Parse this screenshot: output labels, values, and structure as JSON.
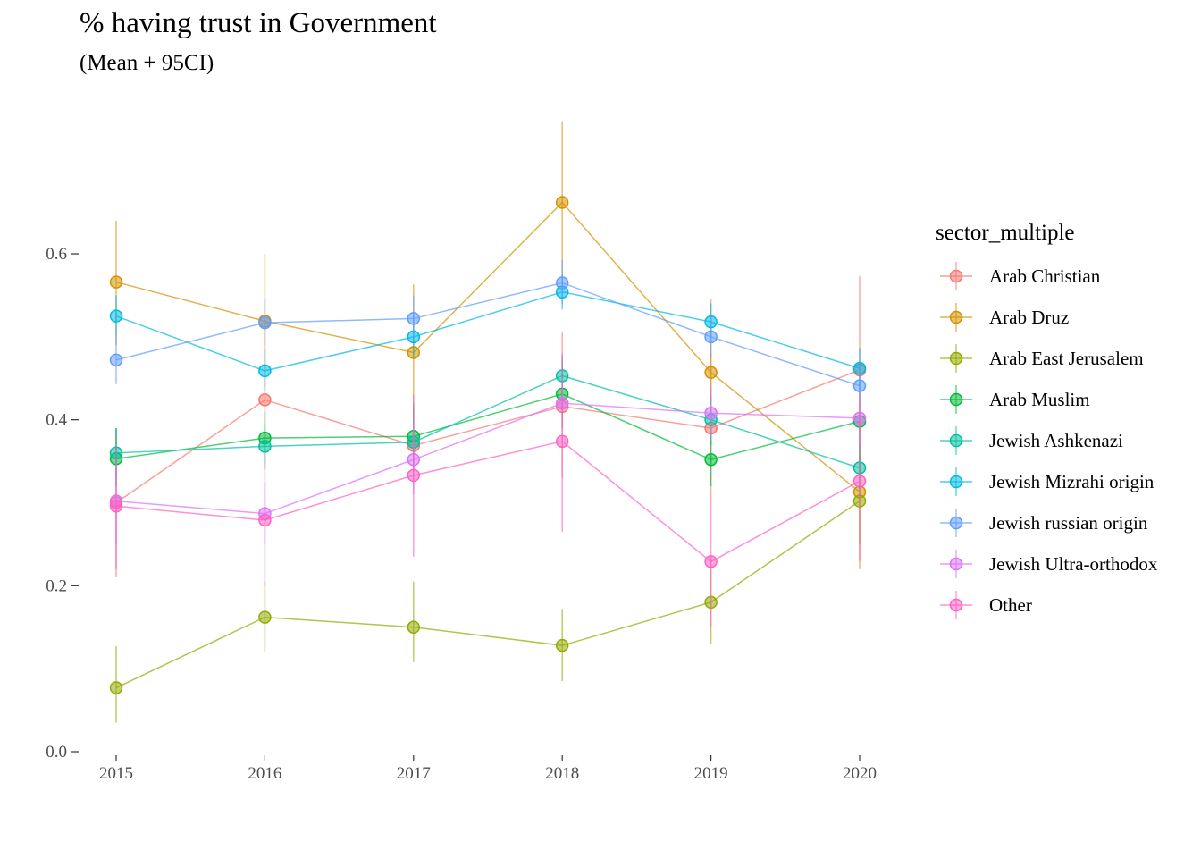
{
  "chart_data": {
    "type": "line",
    "title": "% having trust in Government",
    "subtitle": "(Mean + 95CI)",
    "xlabel": "",
    "ylabel": "",
    "x": [
      2015,
      2016,
      2017,
      2018,
      2019,
      2020
    ],
    "x_tick_labels": [
      "2015",
      "2016",
      "2017",
      "2018",
      "2019",
      "2020"
    ],
    "y_ticks": [
      0.0,
      0.2,
      0.4,
      0.6
    ],
    "y_tick_labels": [
      "0.0",
      "0.2",
      "0.4",
      "0.6"
    ],
    "ylim": [
      0.0,
      0.76
    ],
    "grid": false,
    "legend_title": "sector_multiple",
    "legend_position": "right",
    "series": [
      {
        "name": "Arab Christian",
        "color": "#F8766D",
        "values": [
          0.3,
          0.424,
          0.369,
          0.416,
          0.39,
          0.46
        ],
        "ci_low": [
          0.21,
          0.34,
          0.32,
          0.33,
          0.3,
          0.345
        ],
        "ci_high": [
          0.39,
          0.51,
          0.415,
          0.505,
          0.48,
          0.573
        ]
      },
      {
        "name": "Arab Druz",
        "color": "#D39200",
        "values": [
          0.566,
          0.519,
          0.481,
          0.662,
          0.457,
          0.313
        ],
        "ci_low": [
          0.49,
          0.44,
          0.4,
          0.565,
          0.37,
          0.22
        ],
        "ci_high": [
          0.64,
          0.6,
          0.563,
          0.76,
          0.545,
          0.4
        ]
      },
      {
        "name": "Arab East Jerusalem",
        "color": "#93AA00",
        "values": [
          0.077,
          0.162,
          0.15,
          0.128,
          0.18,
          0.302
        ],
        "ci_low": [
          0.035,
          0.12,
          0.108,
          0.085,
          0.13,
          0.25
        ],
        "ci_high": [
          0.127,
          0.205,
          0.205,
          0.172,
          0.23,
          0.355
        ]
      },
      {
        "name": "Arab Muslim",
        "color": "#00BA38",
        "values": [
          0.353,
          0.378,
          0.38,
          0.431,
          0.352,
          0.398
        ],
        "ci_low": [
          0.32,
          0.345,
          0.34,
          0.39,
          0.32,
          0.35
        ],
        "ci_high": [
          0.39,
          0.41,
          0.42,
          0.47,
          0.385,
          0.445
        ]
      },
      {
        "name": "Jewish Ashkenazi",
        "color": "#00C19F",
        "values": [
          0.36,
          0.368,
          0.373,
          0.453,
          0.4,
          0.342
        ],
        "ci_low": [
          0.33,
          0.34,
          0.345,
          0.43,
          0.37,
          0.315
        ],
        "ci_high": [
          0.39,
          0.395,
          0.4,
          0.477,
          0.43,
          0.37
        ]
      },
      {
        "name": "Jewish Mizrahi origin",
        "color": "#00B9E3",
        "values": [
          0.525,
          0.459,
          0.5,
          0.554,
          0.518,
          0.462
        ],
        "ci_low": [
          0.5,
          0.435,
          0.475,
          0.533,
          0.495,
          0.44
        ],
        "ci_high": [
          0.55,
          0.485,
          0.525,
          0.575,
          0.54,
          0.487
        ]
      },
      {
        "name": "Jewish russian origin",
        "color": "#619CFF",
        "values": [
          0.472,
          0.517,
          0.522,
          0.565,
          0.5,
          0.441
        ],
        "ci_low": [
          0.443,
          0.49,
          0.495,
          0.54,
          0.475,
          0.415
        ],
        "ci_high": [
          0.5,
          0.545,
          0.55,
          0.593,
          0.525,
          0.468
        ]
      },
      {
        "name": "Jewish Ultra-orthodox",
        "color": "#DB72FB",
        "values": [
          0.302,
          0.287,
          0.352,
          0.42,
          0.408,
          0.402
        ],
        "ci_low": [
          0.25,
          0.25,
          0.31,
          0.39,
          0.375,
          0.37
        ],
        "ci_high": [
          0.35,
          0.325,
          0.395,
          0.45,
          0.44,
          0.435
        ]
      },
      {
        "name": "Other",
        "color": "#FF61C3",
        "values": [
          0.296,
          0.279,
          0.333,
          0.374,
          0.229,
          0.326
        ],
        "ci_low": [
          0.22,
          0.2,
          0.235,
          0.265,
          0.15,
          0.23
        ],
        "ci_high": [
          0.37,
          0.355,
          0.43,
          0.48,
          0.3,
          0.42
        ]
      }
    ]
  }
}
